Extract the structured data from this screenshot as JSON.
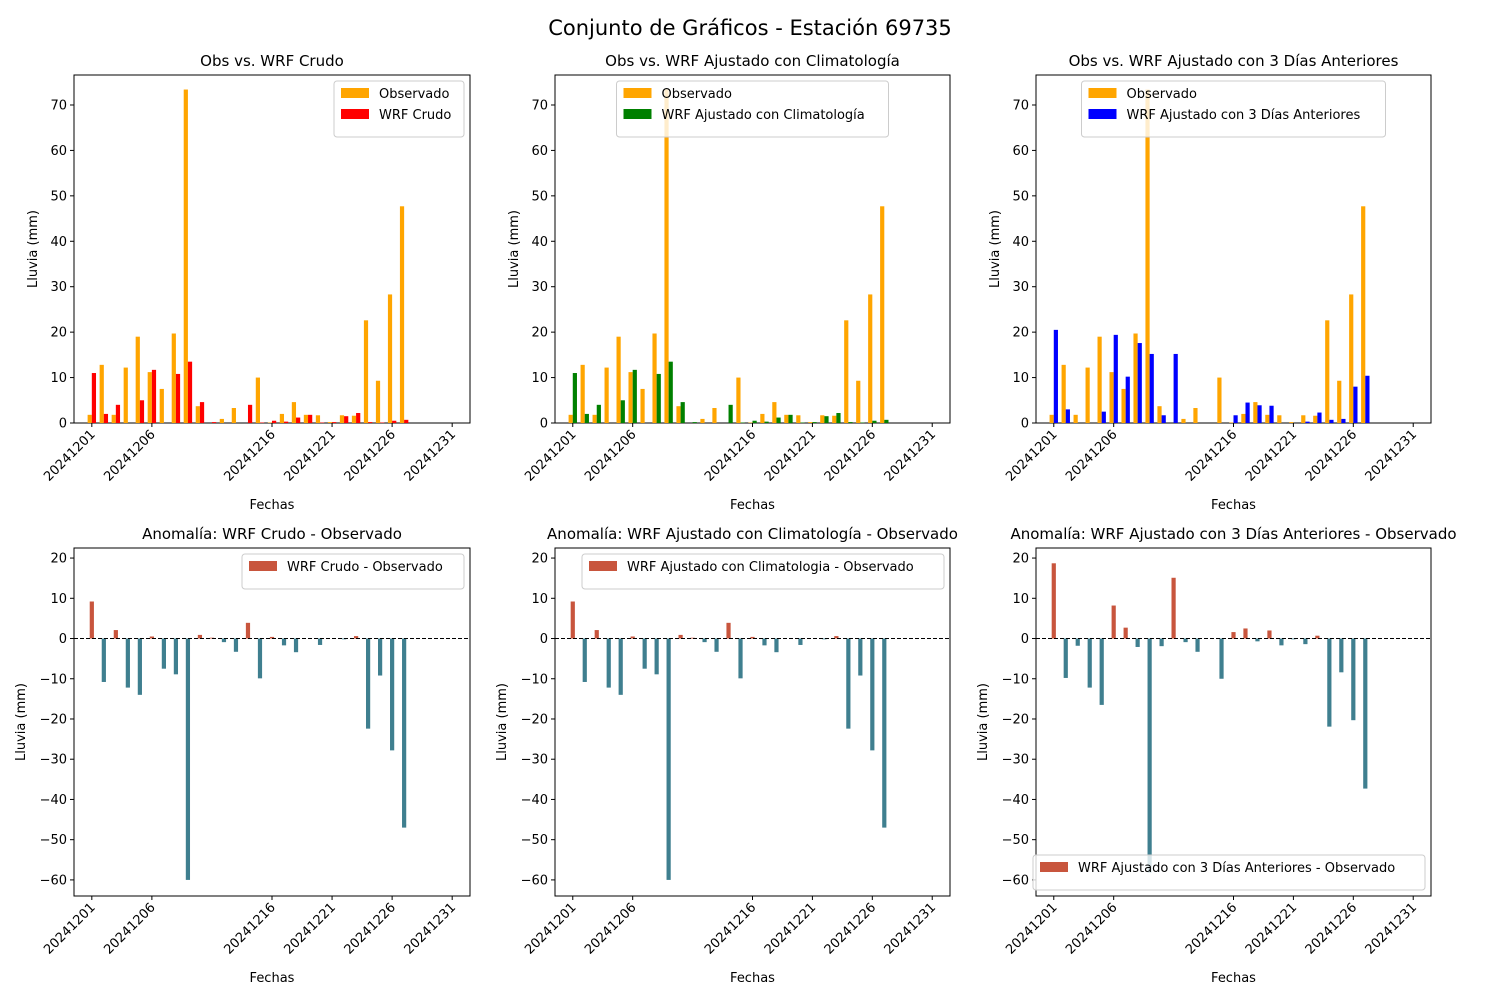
{
  "suptitle": "Conjunto de Gráficos - Estación 69735",
  "dates": [
    "20241201",
    "20241202",
    "20241203",
    "20241204",
    "20241205",
    "20241206",
    "20241207",
    "20241208",
    "20241209",
    "20241210",
    "20241211",
    "20241212",
    "20241213",
    "20241214",
    "20241215",
    "20241216",
    "20241217",
    "20241218",
    "20241219",
    "20241220",
    "20241221",
    "20241222",
    "20241223",
    "20241224",
    "20241225",
    "20241226",
    "20241227",
    "20241228",
    "20241229",
    "20241230",
    "20241231"
  ],
  "colors": {
    "observado": "#FFA500",
    "wrf_crudo": "#FF0000",
    "wrf_clim": "#008000",
    "wrf_3d": "#0000FF",
    "positive_anomaly": "#C8553D",
    "negative_anomaly": "#3F7F8F"
  },
  "chart_data": [
    {
      "type": "bar",
      "title": "Obs vs. WRF Crudo",
      "xlabel": "Fechas",
      "ylabel": "Lluvia (mm)",
      "ylim": [
        0,
        76.6
      ],
      "yticks": [
        0,
        10,
        20,
        30,
        40,
        50,
        60,
        70
      ],
      "xticks": [
        "20241201",
        "20241206",
        "20241216",
        "20241221",
        "20241226",
        "20241231"
      ],
      "legend": "top-right",
      "series": [
        {
          "name": "Observado",
          "color": "#FFA500",
          "values": [
            1.8,
            12.8,
            1.8,
            12.2,
            19.0,
            11.2,
            7.5,
            19.7,
            73.4,
            3.7,
            0.0,
            0.9,
            3.3,
            0.0,
            10.0,
            0.1,
            2.0,
            4.6,
            1.8,
            1.7,
            0.2,
            1.7,
            1.6,
            22.6,
            9.3,
            28.3,
            47.7,
            0,
            0,
            0,
            0
          ]
        },
        {
          "name": "WRF Crudo",
          "color": "#FF0000",
          "values": [
            11.0,
            2.0,
            4.0,
            0.0,
            5.0,
            11.7,
            0.0,
            10.8,
            13.5,
            4.6,
            0.2,
            0.0,
            0.0,
            4.0,
            0.1,
            0.5,
            0.3,
            1.2,
            1.8,
            0.1,
            0.2,
            1.5,
            2.2,
            0.2,
            0.1,
            0.5,
            0.7,
            0,
            0,
            0,
            0
          ]
        }
      ]
    },
    {
      "type": "bar",
      "title": "Obs vs. WRF Ajustado con Climatología",
      "xlabel": "Fechas",
      "ylabel": "Lluvia (mm)",
      "ylim": [
        0,
        76.6
      ],
      "yticks": [
        0,
        10,
        20,
        30,
        40,
        50,
        60,
        70
      ],
      "xticks": [
        "20241201",
        "20241206",
        "20241216",
        "20241221",
        "20241226",
        "20241231"
      ],
      "legend": "top-center",
      "series": [
        {
          "name": "Observado",
          "color": "#FFA500",
          "values": [
            1.8,
            12.8,
            1.8,
            12.2,
            19.0,
            11.2,
            7.5,
            19.7,
            73.4,
            3.7,
            0.0,
            0.9,
            3.3,
            0.0,
            10.0,
            0.1,
            2.0,
            4.6,
            1.8,
            1.7,
            0.2,
            1.7,
            1.6,
            22.6,
            9.3,
            28.3,
            47.7,
            0,
            0,
            0,
            0
          ]
        },
        {
          "name": "WRF Ajustado con Climatología",
          "color": "#008000",
          "values": [
            11.0,
            2.0,
            4.0,
            0.0,
            5.0,
            11.7,
            0.0,
            10.8,
            13.5,
            4.6,
            0.2,
            0.0,
            0.0,
            4.0,
            0.1,
            0.5,
            0.3,
            1.2,
            1.8,
            0.1,
            0.2,
            1.5,
            2.2,
            0.2,
            0.1,
            0.5,
            0.7,
            0,
            0,
            0,
            0
          ]
        }
      ]
    },
    {
      "type": "bar",
      "title": "Obs vs. WRF Ajustado con 3 Días Anteriores",
      "xlabel": "Fechas",
      "ylabel": "Lluvia (mm)",
      "ylim": [
        0,
        76.6
      ],
      "yticks": [
        0,
        10,
        20,
        30,
        40,
        50,
        60,
        70
      ],
      "xticks": [
        "20241201",
        "20241206",
        "20241216",
        "20241221",
        "20241226",
        "20241231"
      ],
      "legend": "top-center",
      "series": [
        {
          "name": "Observado",
          "color": "#FFA500",
          "values": [
            1.8,
            12.8,
            1.8,
            12.2,
            19.0,
            11.2,
            7.5,
            19.7,
            73.4,
            3.7,
            0.0,
            0.9,
            3.3,
            0.0,
            10.0,
            0.1,
            2.0,
            4.6,
            1.8,
            1.7,
            0.2,
            1.7,
            1.6,
            22.6,
            9.3,
            28.3,
            47.7,
            0,
            0,
            0,
            0
          ]
        },
        {
          "name": "WRF Ajustado con 3 Días Anteriores",
          "color": "#0000FF",
          "values": [
            20.5,
            3.0,
            0.0,
            0.0,
            2.5,
            19.4,
            10.2,
            17.6,
            15.2,
            1.7,
            15.2,
            0.0,
            0.0,
            0.0,
            0.0,
            1.7,
            4.5,
            3.9,
            3.8,
            0.0,
            0.0,
            0.3,
            2.3,
            0.7,
            0.9,
            8.0,
            10.4,
            0,
            0,
            0,
            0
          ]
        }
      ]
    },
    {
      "type": "bar",
      "title": "Anomalía: WRF Crudo - Observado",
      "xlabel": "Fechas",
      "ylabel": "Lluvia (mm)",
      "ylim": [
        -64,
        22.5
      ],
      "yticks": [
        -60,
        -50,
        -40,
        -30,
        -20,
        -10,
        0,
        10,
        20
      ],
      "xticks": [
        "20241201",
        "20241206",
        "20241216",
        "20241221",
        "20241226",
        "20241231"
      ],
      "legend": "top-right",
      "series": [
        {
          "name": "WRF Crudo - Observado",
          "values": [
            9.2,
            -10.8,
            2.1,
            -12.2,
            -14.0,
            0.5,
            -7.5,
            -8.9,
            -60.0,
            0.9,
            0.2,
            -0.9,
            -3.3,
            3.9,
            -9.9,
            0.4,
            -1.7,
            -3.4,
            0.0,
            -1.6,
            0.0,
            -0.2,
            0.6,
            -22.4,
            -9.2,
            -27.8,
            -47.0,
            0,
            0,
            0,
            0
          ]
        }
      ]
    },
    {
      "type": "bar",
      "title": "Anomalía: WRF Ajustado con Climatología - Observado",
      "xlabel": "Fechas",
      "ylabel": "Lluvia (mm)",
      "ylim": [
        -64,
        22.5
      ],
      "yticks": [
        -60,
        -50,
        -40,
        -30,
        -20,
        -10,
        0,
        10,
        20
      ],
      "xticks": [
        "20241201",
        "20241206",
        "20241216",
        "20241221",
        "20241226",
        "20241231"
      ],
      "legend": "top-right",
      "series": [
        {
          "name": "WRF Ajustado con Climatologia - Observado",
          "values": [
            9.2,
            -10.8,
            2.1,
            -12.2,
            -14.0,
            0.5,
            -7.5,
            -8.9,
            -60.0,
            0.9,
            0.2,
            -0.9,
            -3.3,
            3.9,
            -9.9,
            0.4,
            -1.7,
            -3.4,
            0.0,
            -1.6,
            0.0,
            -0.2,
            0.6,
            -22.4,
            -9.2,
            -27.8,
            -47.0,
            0,
            0,
            0,
            0
          ]
        }
      ]
    },
    {
      "type": "bar",
      "title": "Anomalía: WRF Ajustado con 3 Días Anteriores - Observado",
      "xlabel": "Fechas",
      "ylabel": "Lluvia (mm)",
      "ylim": [
        -64,
        22.5
      ],
      "yticks": [
        -60,
        -50,
        -40,
        -30,
        -20,
        -10,
        0,
        10,
        20
      ],
      "xticks": [
        "20241201",
        "20241206",
        "20241216",
        "20241221",
        "20241226",
        "20241231"
      ],
      "legend": "bottom-right",
      "series": [
        {
          "name": "WRF Ajustado con 3 Días Anteriores - Observado",
          "values": [
            18.7,
            -9.8,
            -1.8,
            -12.2,
            -16.5,
            8.2,
            2.7,
            -2.1,
            -58.2,
            -1.9,
            15.1,
            -0.9,
            -3.3,
            0.0,
            -10.0,
            1.6,
            2.5,
            -0.7,
            2.0,
            -1.7,
            -0.2,
            -1.4,
            0.7,
            -21.9,
            -8.4,
            -20.3,
            -37.3,
            0,
            0,
            0,
            0
          ]
        }
      ]
    }
  ]
}
